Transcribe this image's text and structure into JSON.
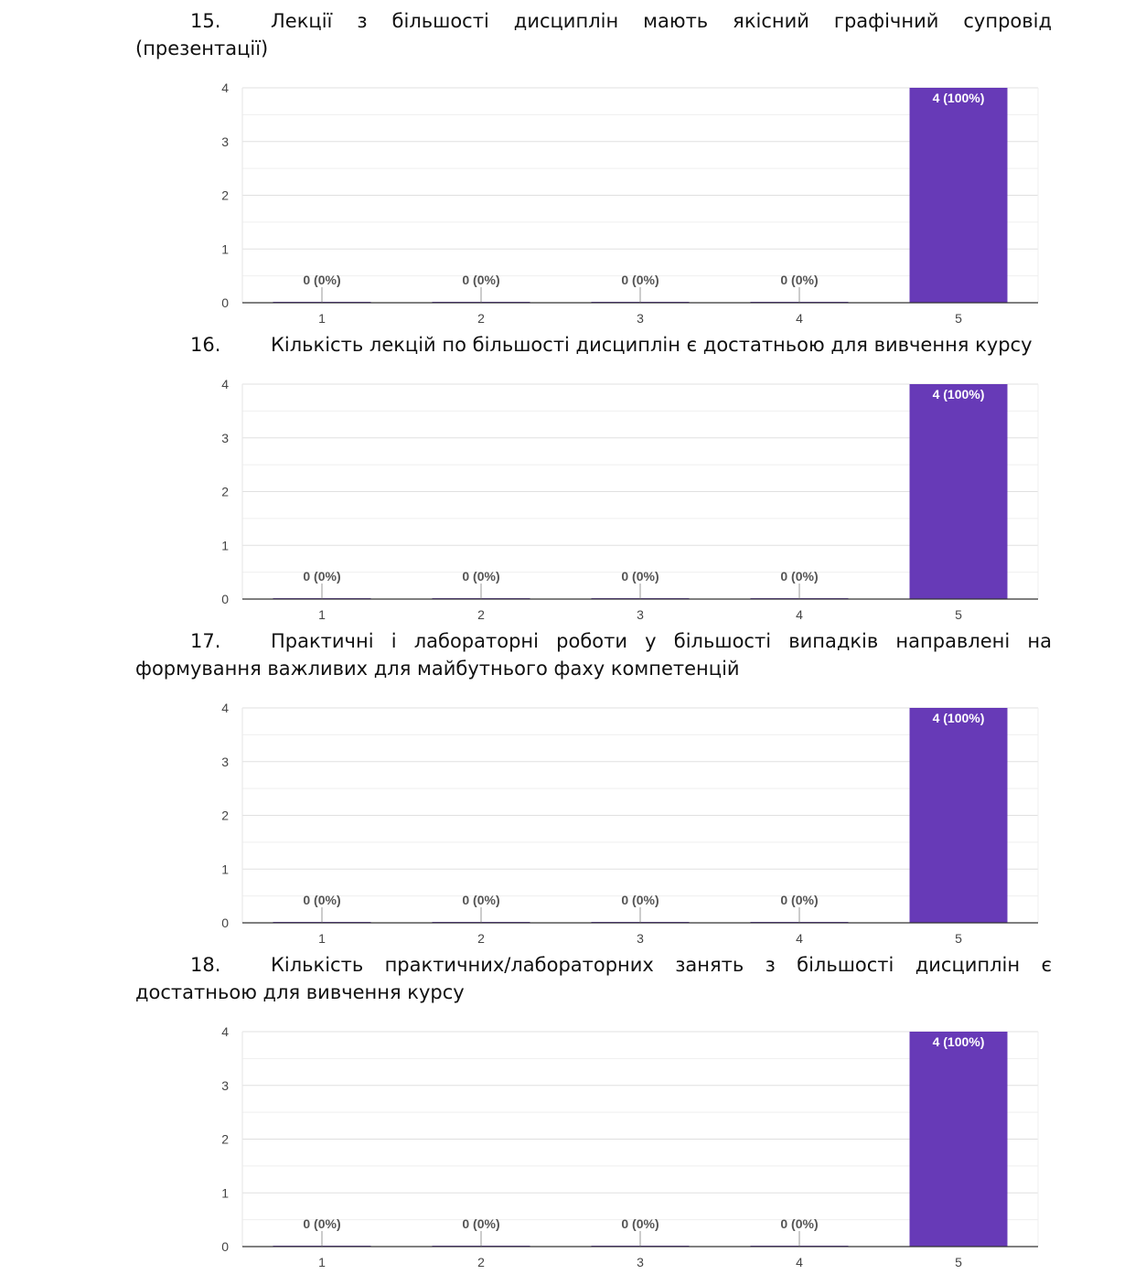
{
  "bar_color": "#673ab7",
  "questions": [
    {
      "number": "15.",
      "text": "Лекції з більшості дисциплін мають якісний графічний супровід (презентації)"
    },
    {
      "number": "16.",
      "text": "Кількість лекцій по більшості дисциплін є достатньою для вивчення курсу"
    },
    {
      "number": "17.",
      "text": "Практичні і лабораторні роботи у більшості випадків направлені на формування важливих для майбутнього фаху компетенцій"
    },
    {
      "number": "18.",
      "text": "Кількість практичних/лабораторних занять з більшості дисциплін є достатньою для вивчення курсу"
    }
  ],
  "chart_data": [
    {
      "type": "bar",
      "categories": [
        "1",
        "2",
        "3",
        "4",
        "5"
      ],
      "values": [
        0,
        0,
        0,
        0,
        4
      ],
      "data_labels": [
        "0 (0%)",
        "0 (0%)",
        "0 (0%)",
        "0 (0%)",
        "4 (100%)"
      ],
      "ylim": [
        0,
        4
      ],
      "yticks": [
        "0",
        "1",
        "2",
        "3",
        "4"
      ],
      "grid": true
    },
    {
      "type": "bar",
      "categories": [
        "1",
        "2",
        "3",
        "4",
        "5"
      ],
      "values": [
        0,
        0,
        0,
        0,
        4
      ],
      "data_labels": [
        "0 (0%)",
        "0 (0%)",
        "0 (0%)",
        "0 (0%)",
        "4 (100%)"
      ],
      "ylim": [
        0,
        4
      ],
      "yticks": [
        "0",
        "1",
        "2",
        "3",
        "4"
      ],
      "grid": true
    },
    {
      "type": "bar",
      "categories": [
        "1",
        "2",
        "3",
        "4",
        "5"
      ],
      "values": [
        0,
        0,
        0,
        0,
        4
      ],
      "data_labels": [
        "0 (0%)",
        "0 (0%)",
        "0 (0%)",
        "0 (0%)",
        "4 (100%)"
      ],
      "ylim": [
        0,
        4
      ],
      "yticks": [
        "0",
        "1",
        "2",
        "3",
        "4"
      ],
      "grid": true
    },
    {
      "type": "bar",
      "categories": [
        "1",
        "2",
        "3",
        "4",
        "5"
      ],
      "values": [
        0,
        0,
        0,
        0,
        4
      ],
      "data_labels": [
        "0 (0%)",
        "0 (0%)",
        "0 (0%)",
        "0 (0%)",
        "4 (100%)"
      ],
      "ylim": [
        0,
        4
      ],
      "yticks": [
        "0",
        "1",
        "2",
        "3",
        "4"
      ],
      "grid": true
    }
  ]
}
